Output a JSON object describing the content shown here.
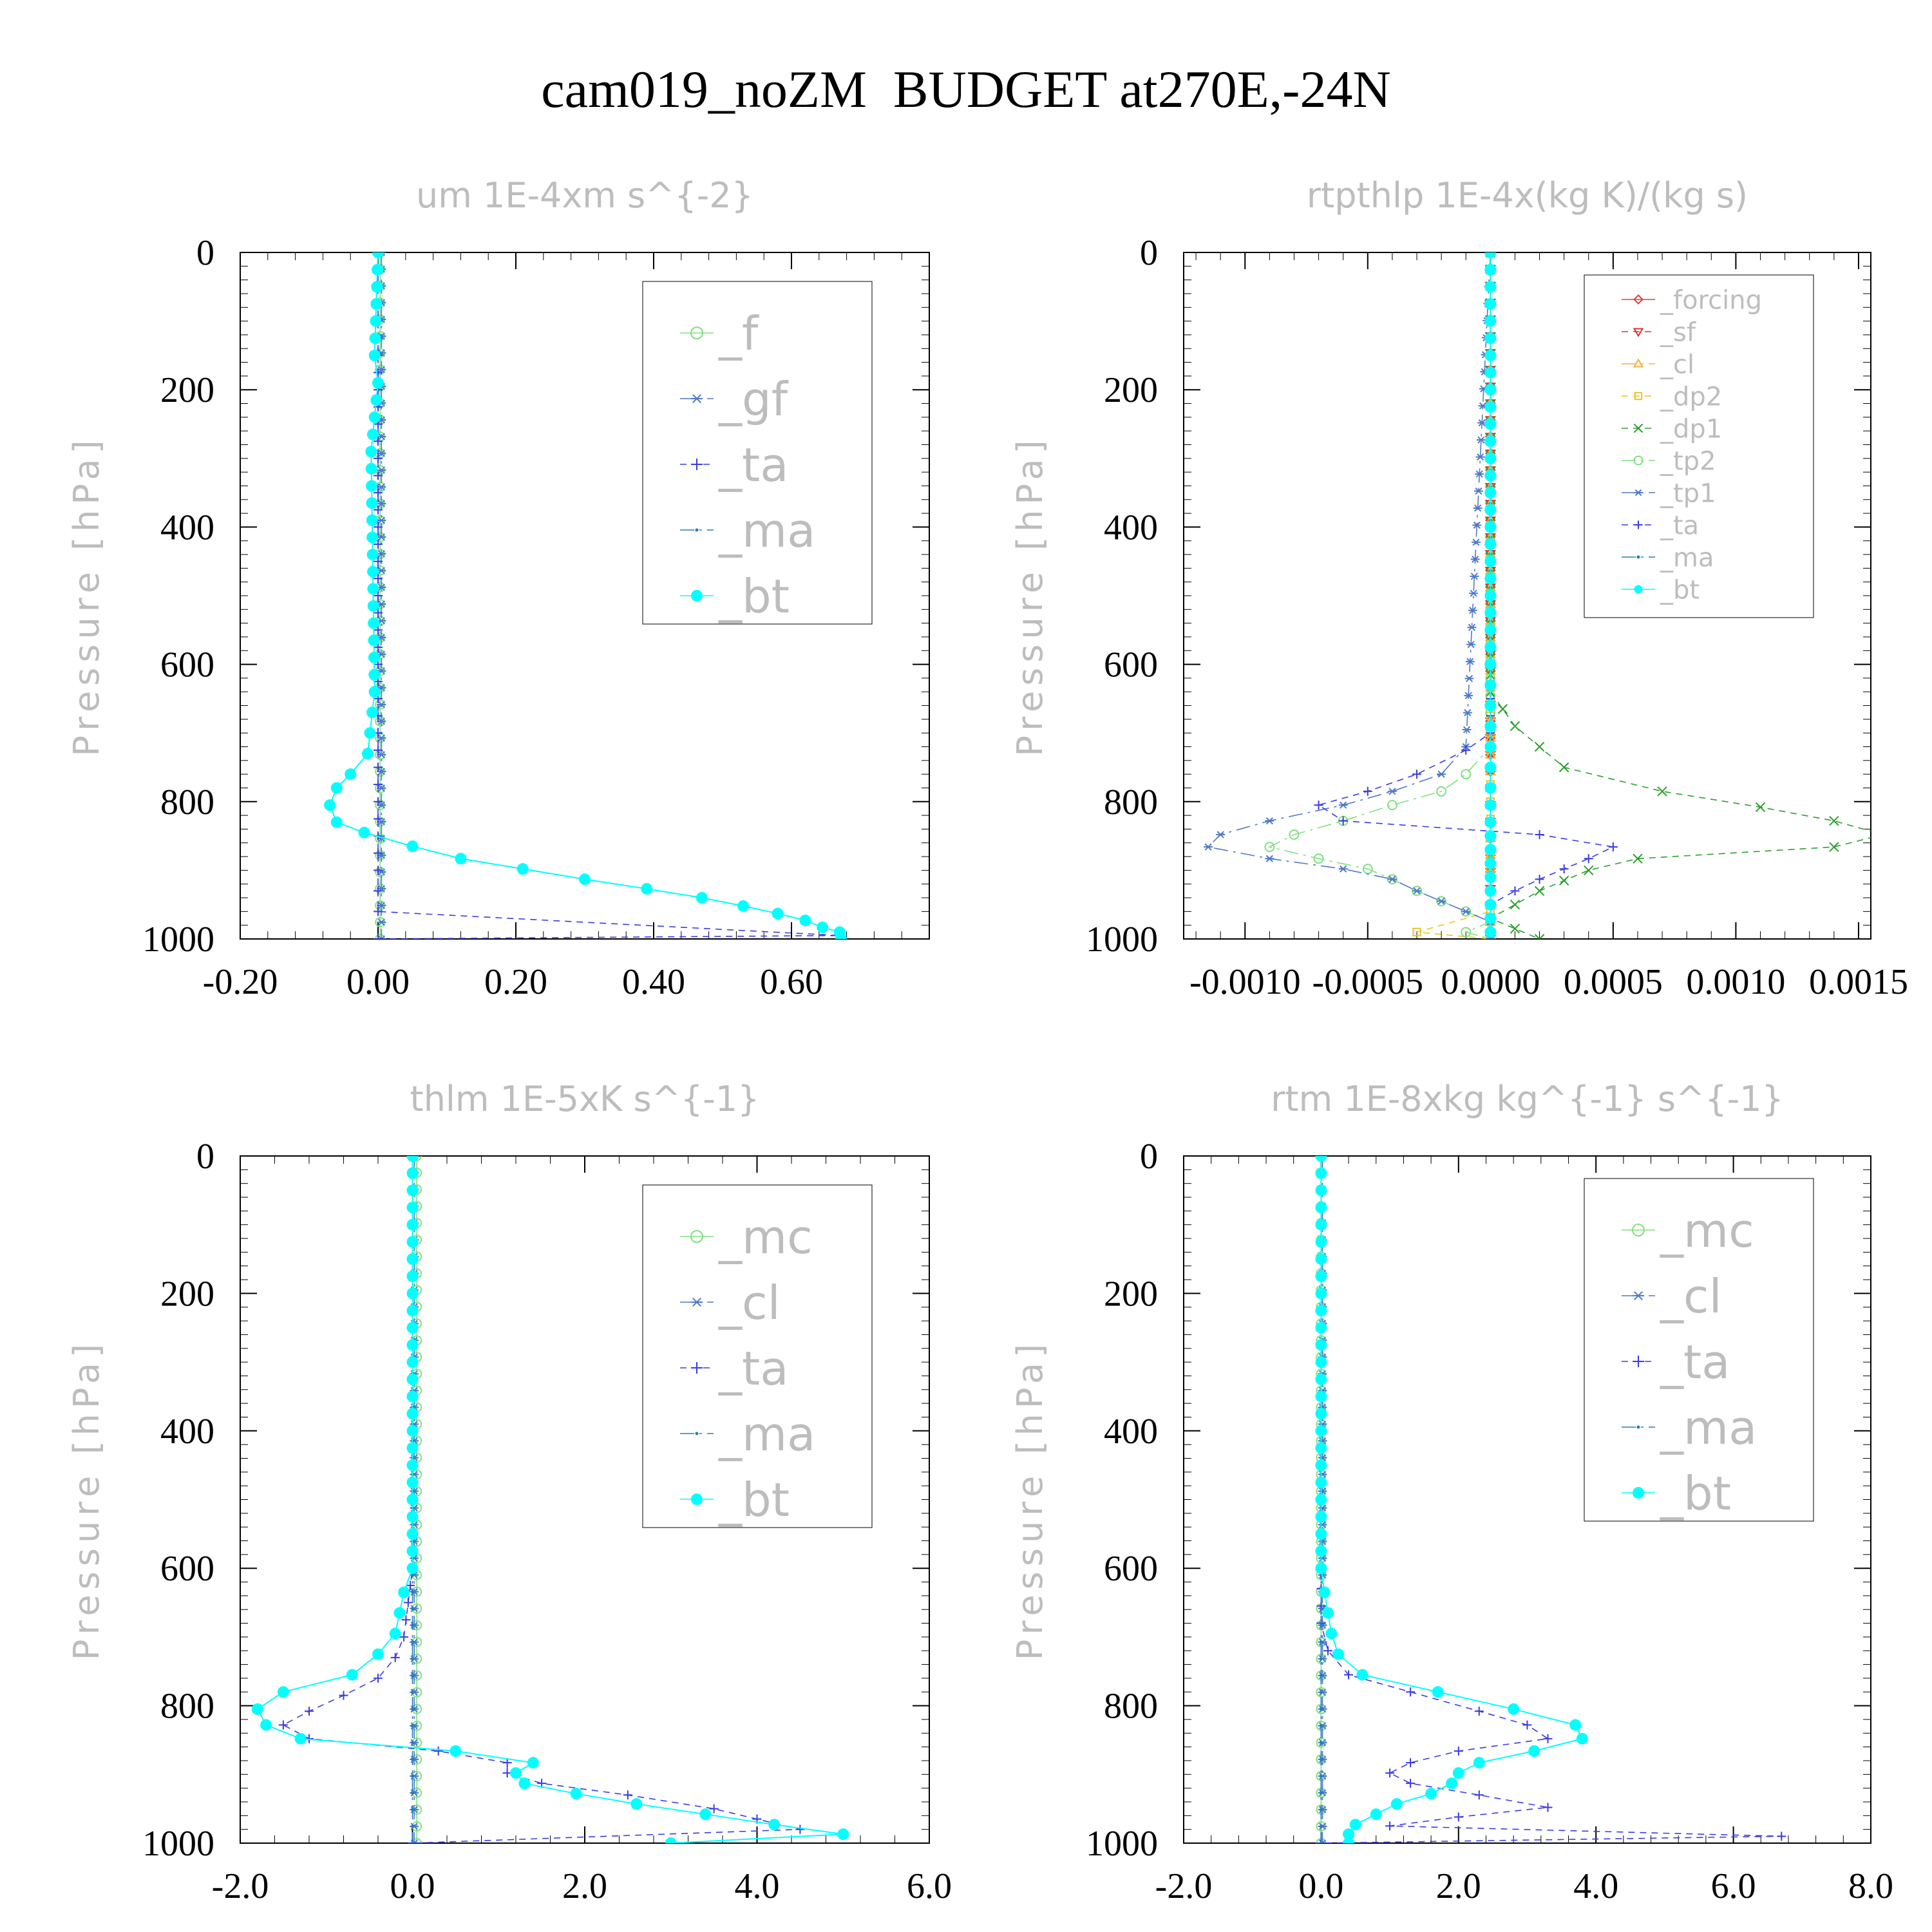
{
  "title": "cam019_noZM  BUDGET at270E,-24N",
  "chart_data": [
    {
      "type": "line",
      "title": "um  1E-4xm s^{-2}",
      "ylabel": "Pressure [hPa]",
      "yreverse": true,
      "ylim": [
        0,
        1000
      ],
      "xlim": [
        -0.2,
        0.8
      ],
      "xticks": [
        -0.2,
        0.0,
        0.2,
        0.4,
        0.6
      ],
      "xtick_labels": [
        "-0.20",
        "0.00",
        "0.20",
        "0.40",
        "0.60"
      ],
      "yticks": [
        0,
        200,
        400,
        600,
        800,
        1000
      ],
      "ytick_labels": [
        "0",
        "200",
        "400",
        "600",
        "800",
        "1000"
      ],
      "legend_position": "top-right",
      "series": [
        {
          "name": "_f",
          "color": "#7fe07f",
          "marker": "circle-open",
          "dash": "solid",
          "p": [
            0,
            1000
          ],
          "x": [
            0.003,
            0.003
          ]
        },
        {
          "name": "_gf",
          "color": "#4f79c9",
          "marker": "star",
          "dash": "dashdot",
          "p": [
            0,
            1000
          ],
          "x": [
            0.005,
            0.005
          ]
        },
        {
          "name": "_ta",
          "color": "#3a3ae6",
          "marker": "plus",
          "dash": "dashed",
          "p": [
            0,
            800,
            900,
            960,
            995,
            1000
          ],
          "x": [
            0.0,
            0.0,
            0.0,
            0.0,
            0.67,
            0.0
          ]
        },
        {
          "name": "_ma",
          "color": "#1d7fbf",
          "marker": "dot",
          "dash": "dashdot",
          "p": [
            0,
            150,
            190,
            290,
            640,
            730,
            760,
            780,
            805,
            830,
            845,
            865,
            883,
            898,
            913,
            927,
            940,
            952,
            963,
            973,
            983,
            990,
            1000
          ],
          "x": [
            0.0,
            -0.005,
            0.0,
            -0.01,
            -0.005,
            -0.015,
            -0.04,
            -0.06,
            -0.07,
            -0.06,
            -0.02,
            0.05,
            0.12,
            0.21,
            0.3,
            0.39,
            0.47,
            0.53,
            0.58,
            0.62,
            0.645,
            0.67,
            0.672
          ]
        },
        {
          "name": "_bt",
          "color": "#00ffff",
          "marker": "dot-filled",
          "dash": "solid",
          "p": [
            0,
            150,
            190,
            290,
            640,
            730,
            760,
            780,
            805,
            830,
            845,
            865,
            883,
            898,
            913,
            927,
            940,
            952,
            963,
            973,
            983,
            990,
            1000
          ],
          "x": [
            0.0,
            -0.005,
            0.0,
            -0.01,
            -0.005,
            -0.015,
            -0.04,
            -0.06,
            -0.07,
            -0.06,
            -0.02,
            0.05,
            0.12,
            0.21,
            0.3,
            0.39,
            0.47,
            0.53,
            0.58,
            0.62,
            0.645,
            0.67,
            0.672
          ]
        }
      ]
    },
    {
      "type": "line",
      "title": "rtpthlp  1E-4x(kg K)/(kg s)",
      "ylabel": "Pressure [hPa]",
      "yreverse": true,
      "ylim": [
        0,
        1000
      ],
      "xlim": [
        -0.00125,
        0.00155
      ],
      "xticks": [
        -0.001,
        -0.0005,
        0.0,
        0.0005,
        0.001,
        0.0015
      ],
      "xtick_labels": [
        "-0.0010",
        "-0.0005",
        "0.0000",
        "0.0005",
        "0.0010",
        "0.0015"
      ],
      "yticks": [
        0,
        200,
        400,
        600,
        800,
        1000
      ],
      "ytick_labels": [
        "0",
        "200",
        "400",
        "600",
        "800",
        "1000"
      ],
      "legend_position": "top-right",
      "series": [
        {
          "name": "_forcing",
          "color": "#e04040",
          "marker": "diamond",
          "dash": "solid",
          "p": [
            0,
            1000
          ],
          "x": [
            0.0,
            0.0
          ]
        },
        {
          "name": "_sf",
          "color": "#e03030",
          "marker": "triangle-down",
          "dash": "dashed",
          "p": [
            0,
            1000
          ],
          "x": [
            0.0,
            0.0
          ]
        },
        {
          "name": "_cl",
          "color": "#f0b040",
          "marker": "triangle-up",
          "dash": "dashdot",
          "p": [
            0,
            1000
          ],
          "x": [
            0.0,
            0.0
          ]
        },
        {
          "name": "_dp2",
          "color": "#f0c020",
          "marker": "square",
          "dash": "dashed",
          "p": [
            0,
            900,
            960,
            990,
            1000
          ],
          "x": [
            0.0,
            0.0,
            0.0,
            -0.0003,
            0.0
          ]
        },
        {
          "name": "_dp1",
          "color": "#2aa02a",
          "marker": "cross",
          "dash": "dashed",
          "p": [
            0,
            640,
            690,
            750,
            785,
            808,
            828,
            848,
            866,
            883,
            900,
            915,
            930,
            950,
            970,
            985,
            1000
          ],
          "x": [
            0.0,
            0.0,
            0.0001,
            0.0003,
            0.0007,
            0.0011,
            0.0014,
            0.0016,
            0.0014,
            0.0006,
            0.0004,
            0.0003,
            0.0002,
            0.0001,
            0.0,
            0.0001,
            0.0002
          ]
        },
        {
          "name": "_tp2",
          "color": "#7fe07f",
          "marker": "circle-open",
          "dash": "dashdot",
          "p": [
            0,
            720,
            760,
            785,
            805,
            828,
            848,
            866,
            883,
            898,
            913,
            930,
            945,
            960,
            975,
            990,
            1000
          ],
          "x": [
            0.0,
            0.0,
            -0.0001,
            -0.0002,
            -0.0004,
            -0.0006,
            -0.0008,
            -0.0009,
            -0.0007,
            -0.0005,
            -0.0004,
            -0.0003,
            -0.0002,
            -0.0001,
            0.0,
            -0.0001,
            0.0
          ]
        },
        {
          "name": "_tp1",
          "color": "#4f79c9",
          "marker": "star",
          "dash": "dashdot",
          "p": [
            0,
            720,
            760,
            785,
            805,
            828,
            848,
            866,
            883,
            898,
            913,
            930,
            945,
            960,
            975,
            990,
            1000
          ],
          "x": [
            0.0,
            -0.0001,
            -0.0002,
            -0.0004,
            -0.0006,
            -0.0009,
            -0.0011,
            -0.00115,
            -0.0009,
            -0.0006,
            -0.0004,
            -0.0003,
            -0.0002,
            -0.0001,
            0.0,
            0.0,
            0.0
          ]
        },
        {
          "name": "_ta",
          "color": "#3a3ae6",
          "marker": "plus",
          "dash": "dashed",
          "p": [
            0,
            700,
            725,
            760,
            785,
            805,
            828,
            848,
            866,
            883,
            898,
            913,
            930,
            950,
            970,
            990,
            1000
          ],
          "x": [
            0.0,
            0.0,
            -0.0001,
            -0.0003,
            -0.0005,
            -0.0007,
            -0.0006,
            0.0002,
            0.0005,
            0.0004,
            0.0003,
            0.0002,
            0.0001,
            0.0,
            0.0,
            0.0,
            0.0
          ]
        },
        {
          "name": "_ma",
          "color": "#1d7fbf",
          "marker": "dot",
          "dash": "dashdot",
          "p": [
            0,
            1000
          ],
          "x": [
            0.0,
            0.0
          ]
        },
        {
          "name": "_bt",
          "color": "#00ffff",
          "marker": "dot-filled",
          "dash": "solid",
          "p": [
            0,
            25,
            50,
            75,
            100,
            125,
            150,
            175,
            200,
            225,
            250,
            275,
            300,
            325,
            350,
            375,
            400,
            425,
            450,
            475,
            500,
            525,
            550,
            575,
            600,
            630,
            660,
            690,
            720,
            750,
            780,
            805,
            830,
            850,
            870,
            890,
            910,
            930,
            950,
            970,
            990
          ],
          "x": [
            0,
            0,
            0,
            0,
            0,
            0,
            0,
            0,
            0,
            0,
            0,
            0,
            0,
            0,
            0,
            0,
            0,
            0,
            0,
            0,
            0,
            0,
            0,
            0,
            0,
            0,
            0,
            0,
            0,
            0,
            0,
            0,
            0,
            0,
            0,
            0,
            0,
            0,
            0,
            0,
            0
          ]
        }
      ]
    },
    {
      "type": "line",
      "title": "thlm  1E-5xK s^{-1}",
      "ylabel": "Pressure [hPa]",
      "yreverse": true,
      "ylim": [
        0,
        1000
      ],
      "xlim": [
        -2.0,
        6.0
      ],
      "xticks": [
        -2.0,
        0.0,
        2.0,
        4.0,
        6.0
      ],
      "xtick_labels": [
        "-2.0",
        "0.0",
        "2.0",
        "4.0",
        "6.0"
      ],
      "yticks": [
        0,
        200,
        400,
        600,
        800,
        1000
      ],
      "ytick_labels": [
        "0",
        "200",
        "400",
        "600",
        "800",
        "1000"
      ],
      "legend_position": "top-right",
      "series": [
        {
          "name": "_mc",
          "color": "#7fe07f",
          "marker": "circle-open",
          "dash": "solid",
          "p": [
            0,
            1000
          ],
          "x": [
            0.05,
            0.05
          ]
        },
        {
          "name": "_cl",
          "color": "#4f79c9",
          "marker": "star",
          "dash": "dashdot",
          "p": [
            0,
            1000
          ],
          "x": [
            0.02,
            0.02
          ]
        },
        {
          "name": "_ta",
          "color": "#3a3ae6",
          "marker": "plus",
          "dash": "dashed",
          "p": [
            0,
            600,
            700,
            730,
            760,
            785,
            808,
            828,
            848,
            866,
            883,
            898,
            913,
            930,
            950,
            965,
            980,
            1000
          ],
          "x": [
            0.0,
            0.0,
            -0.1,
            -0.2,
            -0.4,
            -0.8,
            -1.2,
            -1.5,
            -1.2,
            0.3,
            1.1,
            1.1,
            1.5,
            2.5,
            3.5,
            4.0,
            4.5,
            0.0
          ]
        },
        {
          "name": "_ma",
          "color": "#1d7fbf",
          "marker": "dot",
          "dash": "dashdot",
          "p": [
            0,
            1000
          ],
          "x": [
            0.0,
            0.0
          ]
        },
        {
          "name": "_bt",
          "color": "#00ffff",
          "marker": "dot-filled",
          "dash": "solid",
          "p": [
            0,
            25,
            50,
            75,
            100,
            125,
            150,
            175,
            200,
            225,
            250,
            275,
            300,
            325,
            350,
            375,
            400,
            425,
            450,
            475,
            500,
            525,
            550,
            575,
            600,
            635,
            665,
            695,
            725,
            755,
            780,
            805,
            828,
            848,
            866,
            883,
            898,
            913,
            928,
            943,
            958,
            973,
            987,
            1000
          ],
          "x": [
            0,
            0,
            0,
            0,
            0,
            0,
            0,
            0,
            0,
            0,
            0,
            0,
            0,
            0,
            0,
            0,
            0,
            0,
            0,
            0,
            0,
            0,
            0,
            0,
            0,
            -0.1,
            -0.15,
            -0.2,
            -0.4,
            -0.7,
            -1.5,
            -1.8,
            -1.7,
            -1.3,
            0.5,
            1.4,
            1.2,
            1.3,
            1.9,
            2.6,
            3.4,
            4.2,
            5.0,
            3.0
          ]
        }
      ]
    },
    {
      "type": "line",
      "title": "rtm  1E-8xkg kg^{-1} s^{-1}",
      "ylabel": "Pressure [hPa]",
      "yreverse": true,
      "ylim": [
        0,
        1000
      ],
      "xlim": [
        -2.0,
        8.0
      ],
      "xticks": [
        -2.0,
        0.0,
        2.0,
        4.0,
        6.0,
        8.0
      ],
      "xtick_labels": [
        "-2.0",
        "0.0",
        "2.0",
        "4.0",
        "6.0",
        "8.0"
      ],
      "yticks": [
        0,
        200,
        400,
        600,
        800,
        1000
      ],
      "ytick_labels": [
        "0",
        "200",
        "400",
        "600",
        "800",
        "1000"
      ],
      "legend_position": "top-right",
      "series": [
        {
          "name": "_mc",
          "color": "#7fe07f",
          "marker": "circle-open",
          "dash": "solid",
          "p": [
            0,
            1000
          ],
          "x": [
            0.0,
            0.0
          ]
        },
        {
          "name": "_cl",
          "color": "#4f79c9",
          "marker": "star",
          "dash": "dashdot",
          "p": [
            0,
            1000
          ],
          "x": [
            0.02,
            0.02
          ]
        },
        {
          "name": "_ta",
          "color": "#3a3ae6",
          "marker": "plus",
          "dash": "dashed",
          "p": [
            0,
            680,
            720,
            755,
            780,
            808,
            828,
            848,
            866,
            883,
            898,
            913,
            930,
            948,
            962,
            975,
            990,
            1000
          ],
          "x": [
            0.0,
            0.0,
            0.1,
            0.4,
            1.3,
            2.3,
            3.0,
            3.3,
            2.0,
            1.3,
            1.0,
            1.3,
            2.3,
            3.3,
            2.0,
            1.0,
            6.7,
            0.0
          ]
        },
        {
          "name": "_ma",
          "color": "#1d7fbf",
          "marker": "dot",
          "dash": "dashdot",
          "p": [
            0,
            1000
          ],
          "x": [
            0.0,
            0.0
          ]
        },
        {
          "name": "_bt",
          "color": "#00ffff",
          "marker": "dot-filled",
          "dash": "solid",
          "p": [
            0,
            25,
            50,
            75,
            100,
            125,
            150,
            175,
            200,
            225,
            250,
            275,
            300,
            325,
            350,
            375,
            400,
            425,
            450,
            475,
            500,
            525,
            550,
            575,
            600,
            635,
            665,
            695,
            725,
            755,
            780,
            805,
            828,
            848,
            866,
            883,
            898,
            913,
            928,
            943,
            958,
            973,
            987,
            1000
          ],
          "x": [
            0,
            0,
            0,
            0,
            0,
            0,
            0,
            0,
            0,
            0,
            0,
            0,
            0,
            0,
            0,
            0,
            0,
            0,
            0,
            0,
            0,
            0,
            0,
            0,
            0.0,
            0.05,
            0.1,
            0.15,
            0.25,
            0.6,
            1.7,
            2.8,
            3.7,
            3.8,
            3.1,
            2.3,
            2.0,
            1.9,
            1.6,
            1.1,
            0.8,
            0.5,
            0.4,
            0.4
          ]
        }
      ]
    }
  ]
}
